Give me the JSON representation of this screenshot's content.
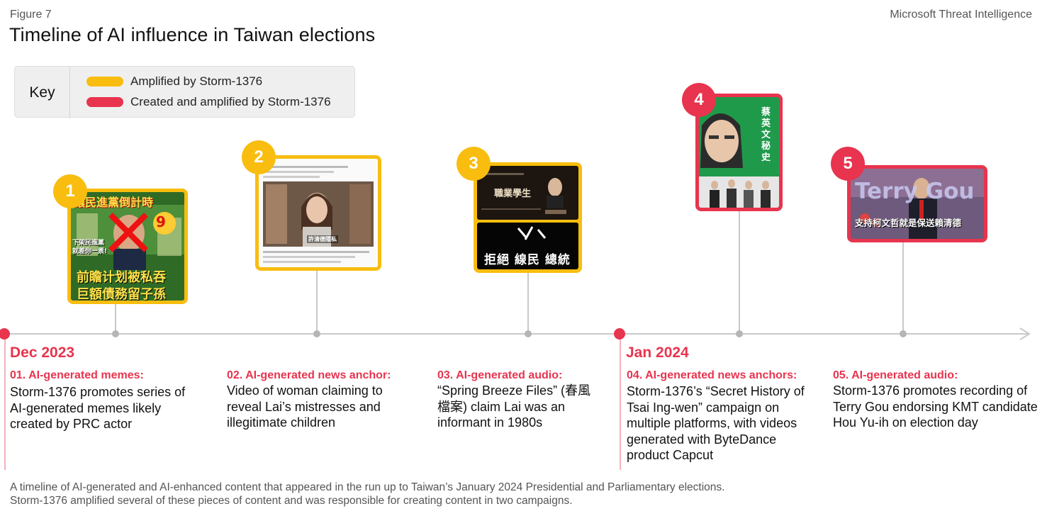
{
  "header": {
    "figure_label": "Figure 7",
    "brand": "Microsoft Threat Intelligence",
    "title": "Timeline of AI influence in Taiwan elections"
  },
  "key": {
    "label": "Key",
    "items": [
      {
        "label": "Amplified by Storm-1376",
        "color": "#f8bd0f"
      },
      {
        "label": "Created and amplified by Storm-1376",
        "color": "#e8344e"
      }
    ]
  },
  "colors": {
    "amber": "#f8bd0f",
    "red": "#e8344e",
    "axis": "#c9c9c9"
  },
  "months": [
    {
      "label": "Dec 2023"
    },
    {
      "label": "Jan 2024"
    }
  ],
  "events": [
    {
      "number": "1",
      "kind": "amplified",
      "title": "01. AI-generated memes:",
      "description": "Storm-1376 promotes series of AI-generated memes likely created by PRC actor",
      "image_text": {
        "top": "讓民進黨倒計時",
        "count": "9",
        "mid": "下架民進黨 就差你一票!",
        "line1": "前瞻计划被私吞",
        "line2": "巨額債務留子孫"
      }
    },
    {
      "number": "2",
      "kind": "amplified",
      "title": "02. AI-generated news anchor:",
      "description": "Video of woman claiming to reveal Lai’s mistresses and illegitimate children",
      "image_text": {
        "subtitle": "許清德隱私"
      }
    },
    {
      "number": "3",
      "kind": "amplified",
      "title": "03. AI-generated audio:",
      "description": "“Spring Breeze Files” (春風檔案) claim Lai was an informant in 1980s",
      "image_text": {
        "upper": "職業學生",
        "lower": "拒絕 線民 總統"
      }
    },
    {
      "number": "4",
      "kind": "created",
      "title": "04. AI-generated news anchors:",
      "description": "Storm-1376’s “Secret History of Tsai Ing-wen” campaign on multiple platforms, with videos generated with ByteDance product Capcut",
      "image_text": {
        "vertical": "蔡英文 秘史"
      }
    },
    {
      "number": "5",
      "kind": "created",
      "title": "05. AI-generated audio:",
      "description": "Storm-1376 promotes recording of Terry Gou endorsing KMT candidate Hou Yu-ih on election day",
      "image_text": {
        "banner": "Terry Gou",
        "subtitle": "支持柯文哲就是保送賴清德"
      }
    }
  ],
  "caption": {
    "line1": "A timeline of AI-generated and AI-enhanced content that appeared in the run up to Taiwan’s January 2024 Presidential and Parliamentary elections.",
    "line2": "Storm-1376 amplified several of these pieces of content and was responsible for creating content in two campaigns."
  }
}
